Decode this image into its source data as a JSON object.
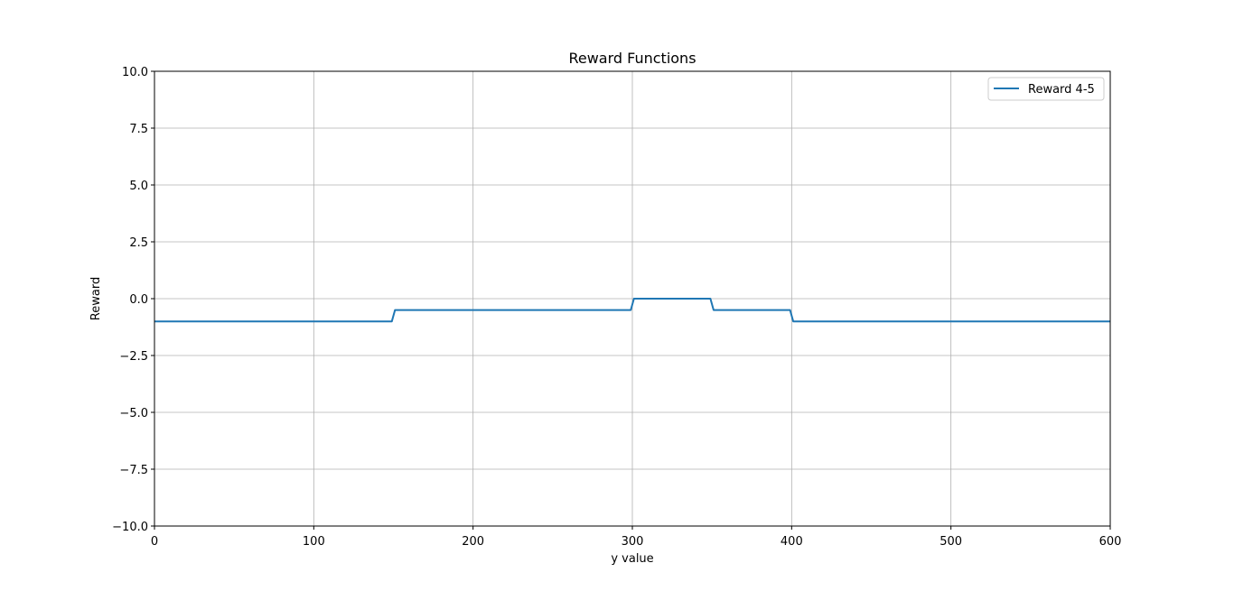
{
  "chart_data": {
    "type": "line",
    "title": "Reward Functions",
    "xlabel": "y value",
    "ylabel": "Reward",
    "xlim": [
      0,
      600
    ],
    "ylim": [
      -10,
      10
    ],
    "x_ticks": [
      0,
      100,
      200,
      300,
      400,
      500,
      600
    ],
    "x_tick_labels": [
      "0",
      "100",
      "200",
      "300",
      "400",
      "500",
      "600"
    ],
    "y_ticks": [
      -10,
      -7.5,
      -5,
      -2.5,
      0,
      2.5,
      5,
      7.5,
      10
    ],
    "y_tick_labels": [
      "−10.0",
      "−7.5",
      "−5.0",
      "−2.5",
      "0.0",
      "2.5",
      "5.0",
      "7.5",
      "10.0"
    ],
    "grid": true,
    "legend_position": "top-right",
    "series": [
      {
        "name": "Reward 4-5",
        "color": "#1f77b4",
        "x": [
          0,
          149,
          151,
          299,
          301,
          349,
          351,
          399,
          401,
          600
        ],
        "y": [
          -1,
          -1,
          -0.5,
          -0.5,
          0,
          0,
          -0.5,
          -0.5,
          -1,
          -1
        ]
      }
    ]
  }
}
